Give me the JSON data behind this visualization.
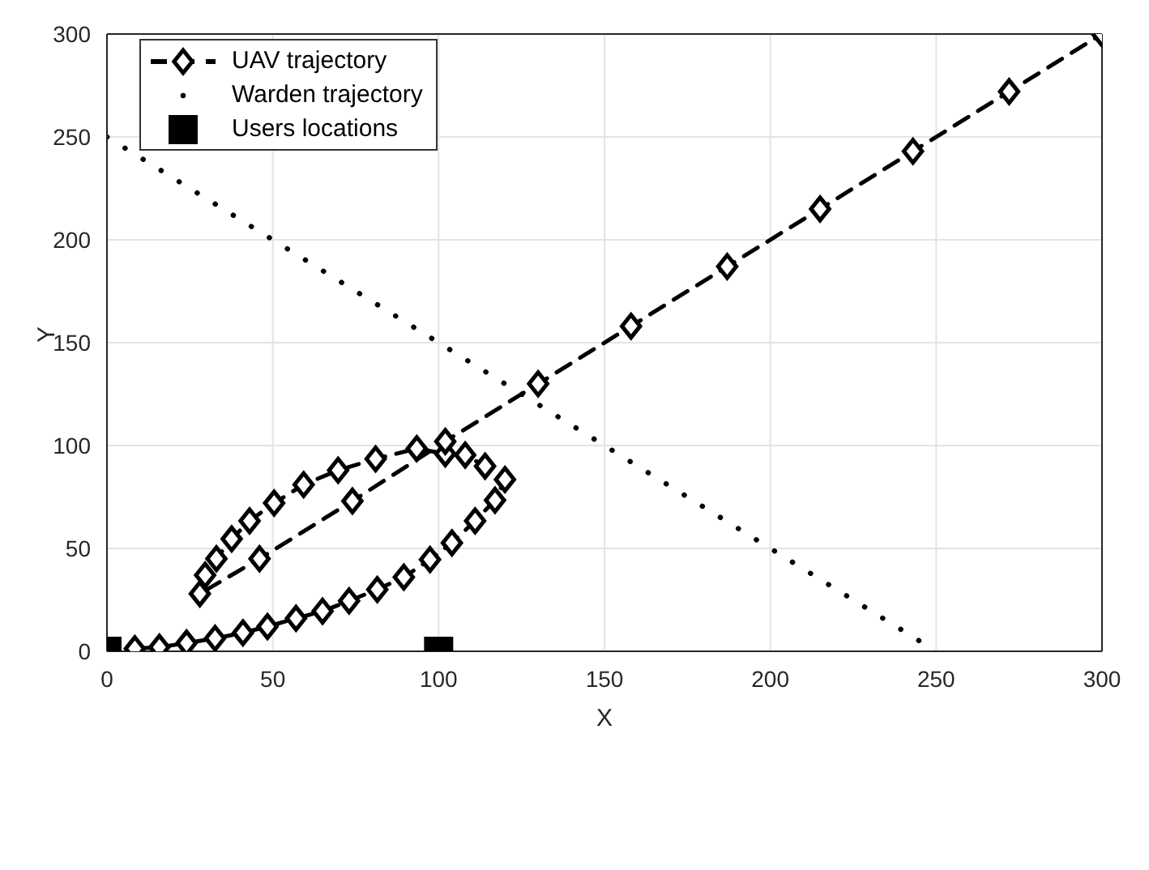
{
  "chart_data": {
    "type": "line",
    "xlabel": "X",
    "ylabel": "Y",
    "xlim": [
      0,
      300
    ],
    "ylim": [
      0,
      300
    ],
    "xticks": [
      0,
      50,
      100,
      150,
      200,
      250,
      300
    ],
    "yticks": [
      0,
      50,
      100,
      150,
      200,
      250,
      300
    ],
    "grid": true,
    "legend": "top left",
    "series": [
      {
        "name": "UAV trajectory",
        "type": "line",
        "color": "#000000",
        "marker": "diamond",
        "line_style": "dashed",
        "x": [
          8.4,
          15.8,
          24,
          32.6,
          41,
          48.4,
          57,
          65,
          73,
          81.5,
          89.5,
          97.4,
          104,
          111,
          117,
          120,
          114,
          108,
          102,
          93.4,
          81,
          69.7,
          59.3,
          50.4,
          43,
          37.6,
          33,
          29.6,
          28,
          46,
          74,
          102,
          130,
          158,
          187,
          215,
          243,
          272,
          300
        ],
        "values": [
          1.3,
          2,
          4,
          6.3,
          9,
          12,
          16,
          19.5,
          24.5,
          30,
          36,
          44.6,
          52.7,
          63.4,
          73.4,
          83.5,
          90,
          95.4,
          96,
          98.5,
          93.5,
          88,
          81,
          72,
          63.4,
          54.6,
          45,
          37,
          28,
          45,
          73,
          102,
          130,
          158,
          187,
          215,
          243,
          272,
          300
        ]
      },
      {
        "name": "Warden trajectory",
        "type": "line",
        "color": "#000000",
        "marker": "none",
        "line_style": "dotted",
        "x": [
          0,
          250
        ],
        "values": [
          250,
          0
        ]
      },
      {
        "name": "Users locations",
        "type": "scatter",
        "color": "#000000",
        "marker": "square",
        "x": [
          0,
          100
        ],
        "values": [
          0,
          0
        ]
      }
    ]
  }
}
